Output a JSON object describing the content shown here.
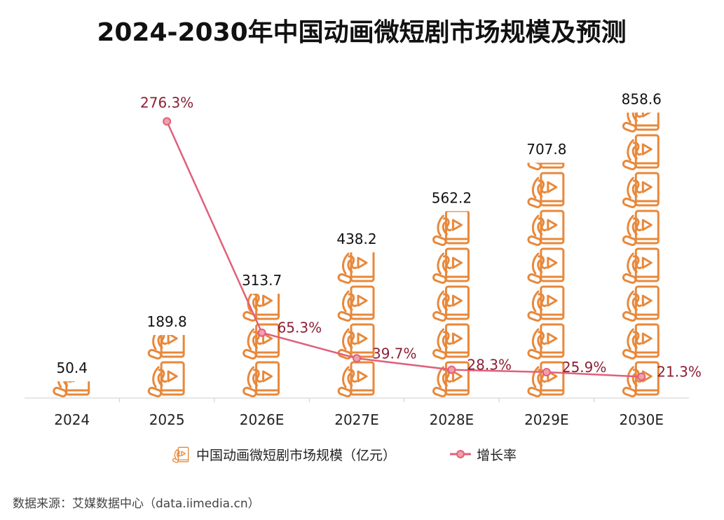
{
  "chart_data": {
    "type": "bar",
    "title": "2024-2030年中国动画微短剧市场规模及预测",
    "categories": [
      "2024",
      "2025",
      "2026E",
      "2027E",
      "2028E",
      "2029E",
      "2030E"
    ],
    "series": [
      {
        "name": "中国动画微短剧市场规模（亿元）",
        "type": "pictogram-bar",
        "values": [
          50.4,
          189.8,
          313.7,
          438.2,
          562.2,
          707.8,
          858.6
        ],
        "labels": [
          "50.4",
          "189.8",
          "313.7",
          "438.2",
          "562.2",
          "707.8",
          "858.6"
        ],
        "color": "#e8883a",
        "icon": "hand-holding-phone-play-icon"
      },
      {
        "name": "增长率",
        "type": "line",
        "values": [
          null,
          276.3,
          65.3,
          39.7,
          28.3,
          25.9,
          21.3
        ],
        "labels": [
          "",
          "276.3%",
          "65.3%",
          "39.7%",
          "28.3%",
          "25.9%",
          "21.3%"
        ],
        "color": "#e0607a",
        "label_color": "#8b2035"
      }
    ],
    "legend": "bottom",
    "grid": false
  },
  "source": "数据来源：艾媒数据中心（data.iimedia.cn）"
}
